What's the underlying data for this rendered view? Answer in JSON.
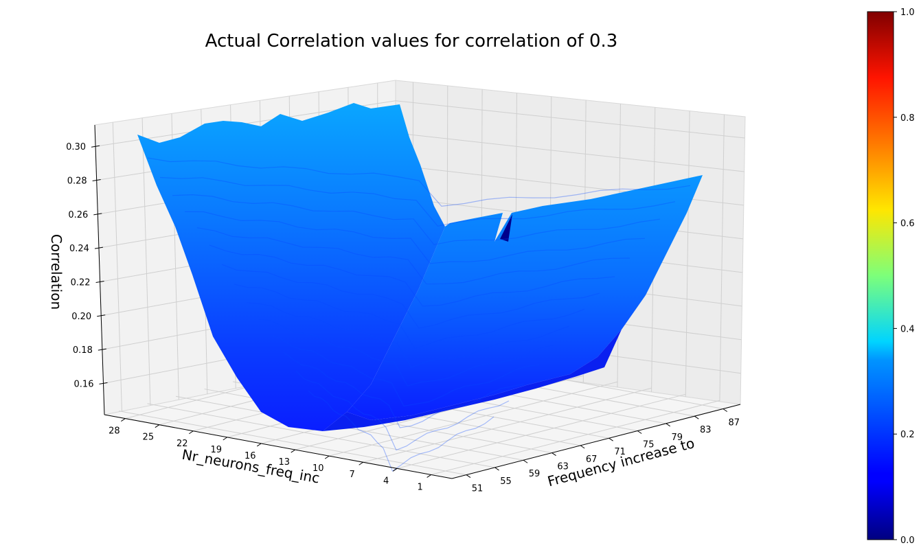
{
  "chart_data": {
    "type": "surface3d",
    "title": "Actual Correlation values for correlation of 0.3",
    "xlabel": "Frequency increase to",
    "ylabel": "Nr_neurons_freq_inc",
    "zlabel": "Correlation",
    "x_ticks": [
      "51",
      "55",
      "59",
      "63",
      "67",
      "71",
      "75",
      "79",
      "83",
      "87"
    ],
    "y_ticks": [
      "28",
      "25",
      "22",
      "19",
      "16",
      "13",
      "10",
      "7",
      "4",
      "1"
    ],
    "z_ticks": [
      "0.30",
      "0.28",
      "0.26",
      "0.24",
      "0.22",
      "0.20",
      "0.18",
      "0.16"
    ],
    "xlim": [
      51,
      90
    ],
    "ylim": [
      1,
      30
    ],
    "zlim": [
      0.14,
      0.31
    ],
    "surface_summary": {
      "corner_low_freq_high_neurons": 0.3,
      "corner_low_freq_low_neurons": 0.3,
      "corner_high_freq_low_neurons": 0.28,
      "minimum": 0.14,
      "anomaly_point": 0.0
    },
    "colorbar": {
      "colormap": "jet",
      "range": [
        0.0,
        1.0
      ],
      "ticks": [
        "0.0",
        "0.2",
        "0.4",
        "0.6",
        "0.8",
        "1.0"
      ]
    },
    "grid": true
  }
}
